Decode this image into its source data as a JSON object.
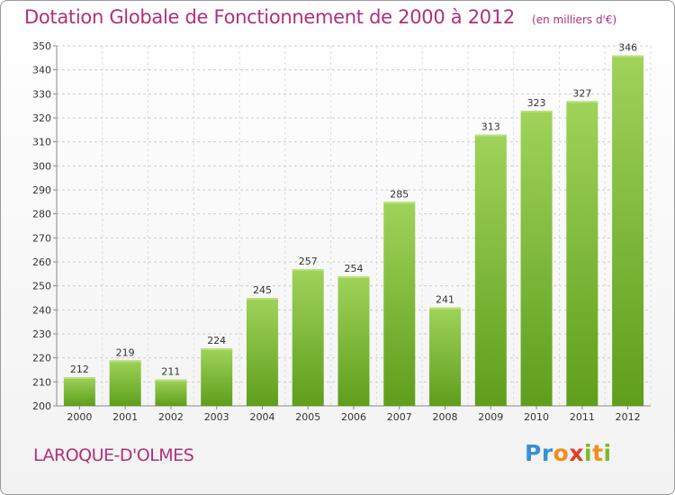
{
  "header": {
    "title": "Dotation Globale de Fonctionnement de 2000 à 2012",
    "unit_note": "(en milliers d'€)"
  },
  "commune": "LAROQUE-D'OLMES",
  "logo": {
    "text": "Proxiti",
    "colors": [
      "#3a8fd1",
      "#f28c1e",
      "#e23c2b",
      "#7cb82f"
    ]
  },
  "chart_data": {
    "type": "bar",
    "title": "Dotation Globale de Fonctionnement de 2000 à 2012",
    "subtitle": "(en milliers d'€)",
    "xlabel": "",
    "ylabel": "",
    "categories": [
      "2000",
      "2001",
      "2002",
      "2003",
      "2004",
      "2005",
      "2006",
      "2007",
      "2008",
      "2009",
      "2010",
      "2011",
      "2012"
    ],
    "values": [
      212,
      219,
      211,
      224,
      245,
      257,
      254,
      285,
      241,
      313,
      323,
      327,
      346
    ],
    "ylim": [
      200,
      350
    ],
    "yticks": [
      200,
      210,
      220,
      230,
      240,
      250,
      260,
      270,
      280,
      290,
      300,
      310,
      320,
      330,
      340,
      350
    ],
    "grid": true,
    "bar_color_top": "#9fd35a",
    "bar_color_bottom": "#5f9e1c",
    "text_color": "#b0307a"
  }
}
